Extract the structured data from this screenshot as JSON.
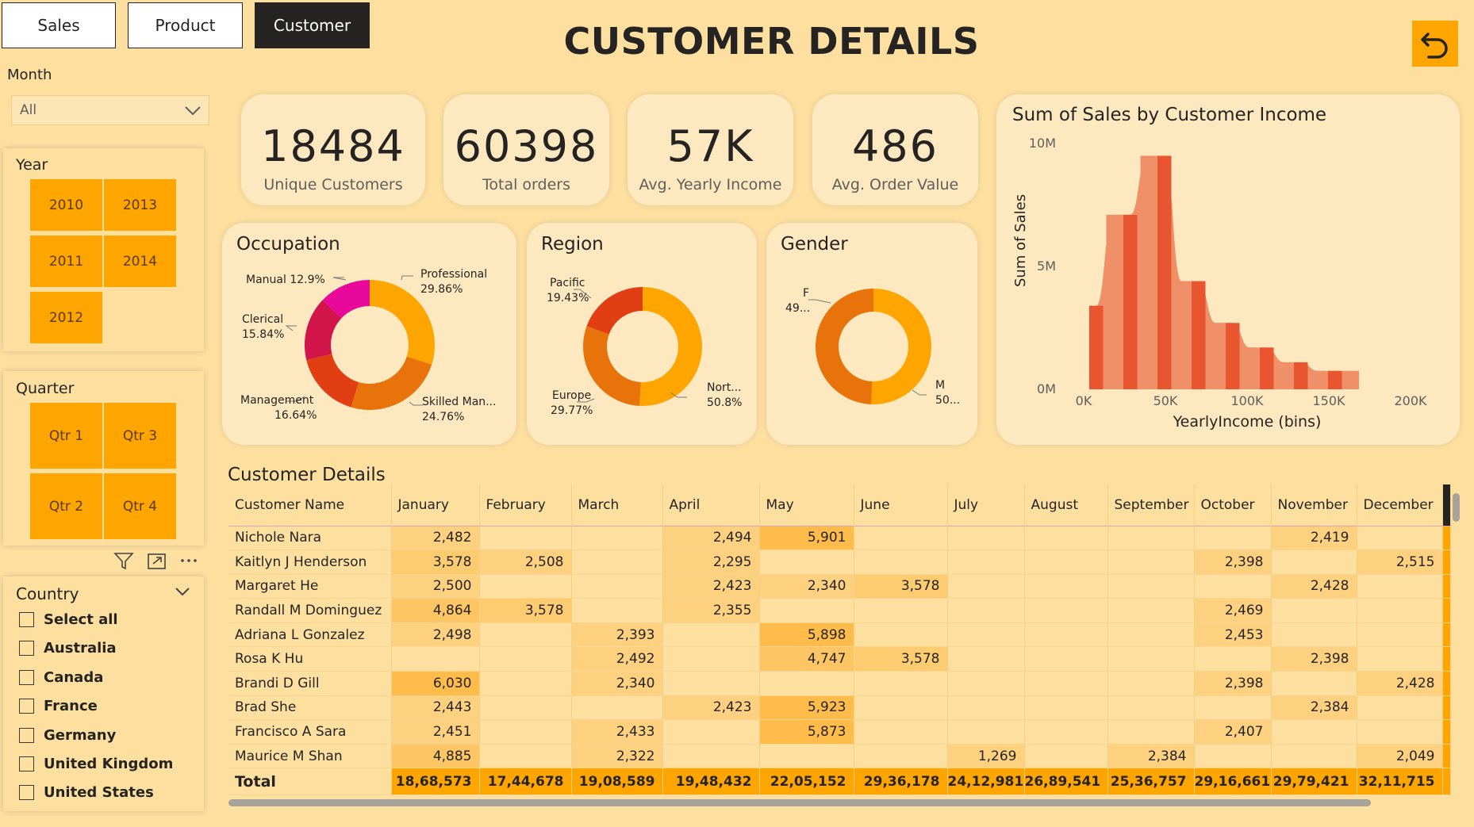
{
  "nav": {
    "sales": "Sales",
    "product": "Product",
    "customer": "Customer"
  },
  "page_title": "CUSTOMER DETAILS",
  "filters": {
    "month_label": "Month",
    "month_value": "All",
    "year_label": "Year",
    "years": [
      "2010",
      "2013",
      "2011",
      "2014",
      "2012"
    ],
    "quarter_label": "Quarter",
    "quarters": [
      "Qtr 1",
      "Qtr 3",
      "Qtr 2",
      "Qtr 4"
    ],
    "country_label": "Country",
    "countries": [
      "Select all",
      "Australia",
      "Canada",
      "France",
      "Germany",
      "United Kingdom",
      "United States"
    ]
  },
  "kpis": [
    {
      "value": "18484",
      "label": "Unique Customers"
    },
    {
      "value": "60398",
      "label": "Total orders"
    },
    {
      "value": "57K",
      "label": "Avg. Yearly Income"
    },
    {
      "value": "486",
      "label": "Avg. Order Value"
    }
  ],
  "colors": {
    "background": "#FDDFA0",
    "accent": "#FFA500",
    "card": "#FDE8C0",
    "dark": "#252423"
  },
  "occupation": {
    "title": "Occupation",
    "labels": [
      "Professional",
      "29.86%",
      "Skilled Man...",
      "24.76%",
      "Management",
      "16.64%",
      "Clerical",
      "15.84%",
      "Manual 12.9%"
    ]
  },
  "region": {
    "title": "Region",
    "labels": [
      "Pacific",
      "19.43%",
      "Nort...",
      "50.8%",
      "Europe",
      "29.77%"
    ]
  },
  "gender": {
    "title": "Gender",
    "labels": [
      "F",
      "49...",
      "M",
      "50..."
    ]
  },
  "income_chart": {
    "title": "Sum of Sales by Customer Income",
    "ylabel": "Sum of Sales",
    "xlabel": "YearlyIncome (bins)",
    "yticks": [
      "10M",
      "5M",
      "0M"
    ],
    "xticks": [
      "0K",
      "50K",
      "100K",
      "150K",
      "200K"
    ]
  },
  "chart_data": [
    {
      "type": "pie",
      "title": "Occupation",
      "categories": [
        "Professional",
        "Skilled Manual",
        "Management",
        "Clerical",
        "Manual"
      ],
      "values": [
        29.86,
        24.76,
        16.64,
        15.84,
        12.9
      ],
      "colors": [
        "#FFA500",
        "#E8730A",
        "#E23E14",
        "#D1144A",
        "#E8099A"
      ]
    },
    {
      "type": "pie",
      "title": "Region",
      "categories": [
        "North America",
        "Europe",
        "Pacific"
      ],
      "values": [
        50.8,
        29.77,
        19.43
      ],
      "colors": [
        "#FFA500",
        "#E8730A",
        "#E23E14"
      ]
    },
    {
      "type": "pie",
      "title": "Gender",
      "categories": [
        "M",
        "F"
      ],
      "values": [
        50.6,
        49.4
      ],
      "colors": [
        "#FFA500",
        "#E8730A"
      ]
    },
    {
      "type": "bar",
      "title": "Sum of Sales by Customer Income",
      "xlabel": "YearlyIncome (bins)",
      "ylabel": "Sum of Sales",
      "x": [
        10000,
        20000,
        30000,
        40000,
        50000,
        60000,
        70000,
        80000,
        90000,
        100000,
        110000,
        120000,
        130000,
        140000,
        150000,
        160000
      ],
      "values": [
        3400000,
        7100000,
        7100000,
        9500000,
        9500000,
        4400000,
        4400000,
        2700000,
        2700000,
        1700000,
        1700000,
        1100000,
        1100000,
        750000,
        750000,
        750000
      ],
      "colors": [
        "#E8552E",
        "#F09068"
      ],
      "ylim": [
        0,
        10000000
      ],
      "xlim": [
        0,
        200000
      ]
    }
  ],
  "table": {
    "title": "Customer Details",
    "columns": [
      "Customer Name",
      "January",
      "February",
      "March",
      "April",
      "May",
      "June",
      "July",
      "August",
      "September",
      "October",
      "November",
      "December"
    ],
    "rows": [
      [
        "Nichole Nara",
        "2,482",
        "",
        "",
        "2,494",
        "5,901",
        "",
        "",
        "",
        "",
        "",
        "2,419",
        ""
      ],
      [
        "Kaitlyn J Henderson",
        "3,578",
        "2,508",
        "",
        "2,295",
        "",
        "",
        "",
        "",
        "",
        "2,398",
        "",
        "2,515"
      ],
      [
        "Margaret He",
        "2,500",
        "",
        "",
        "2,423",
        "2,340",
        "3,578",
        "",
        "",
        "",
        "",
        "2,428",
        ""
      ],
      [
        "Randall M Dominguez",
        "4,864",
        "3,578",
        "",
        "2,355",
        "",
        "",
        "",
        "",
        "",
        "2,469",
        "",
        ""
      ],
      [
        "Adriana L Gonzalez",
        "2,498",
        "",
        "2,393",
        "",
        "5,898",
        "",
        "",
        "",
        "",
        "2,453",
        "",
        ""
      ],
      [
        "Rosa K Hu",
        "",
        "",
        "2,492",
        "",
        "4,747",
        "3,578",
        "",
        "",
        "",
        "",
        "2,398",
        ""
      ],
      [
        "Brandi D Gill",
        "6,030",
        "",
        "2,340",
        "",
        "",
        "",
        "",
        "",
        "",
        "2,398",
        "",
        "2,428"
      ],
      [
        "Brad She",
        "2,443",
        "",
        "",
        "2,423",
        "5,923",
        "",
        "",
        "",
        "",
        "",
        "2,384",
        ""
      ],
      [
        "Francisco A Sara",
        "2,451",
        "",
        "2,433",
        "",
        "5,873",
        "",
        "",
        "",
        "",
        "2,407",
        "",
        ""
      ],
      [
        "Maurice M Shan",
        "4,885",
        "",
        "2,322",
        "",
        "",
        "",
        "1,269",
        "",
        "2,384",
        "",
        "",
        "2,049"
      ]
    ],
    "total_label": "Total",
    "totals": [
      "18,68,573",
      "17,44,678",
      "19,08,589",
      "19,48,432",
      "22,05,152",
      "29,36,178",
      "24,12,981",
      "26,89,541",
      "25,36,757",
      "29,16,661",
      "29,79,421",
      "32,11,715"
    ]
  }
}
